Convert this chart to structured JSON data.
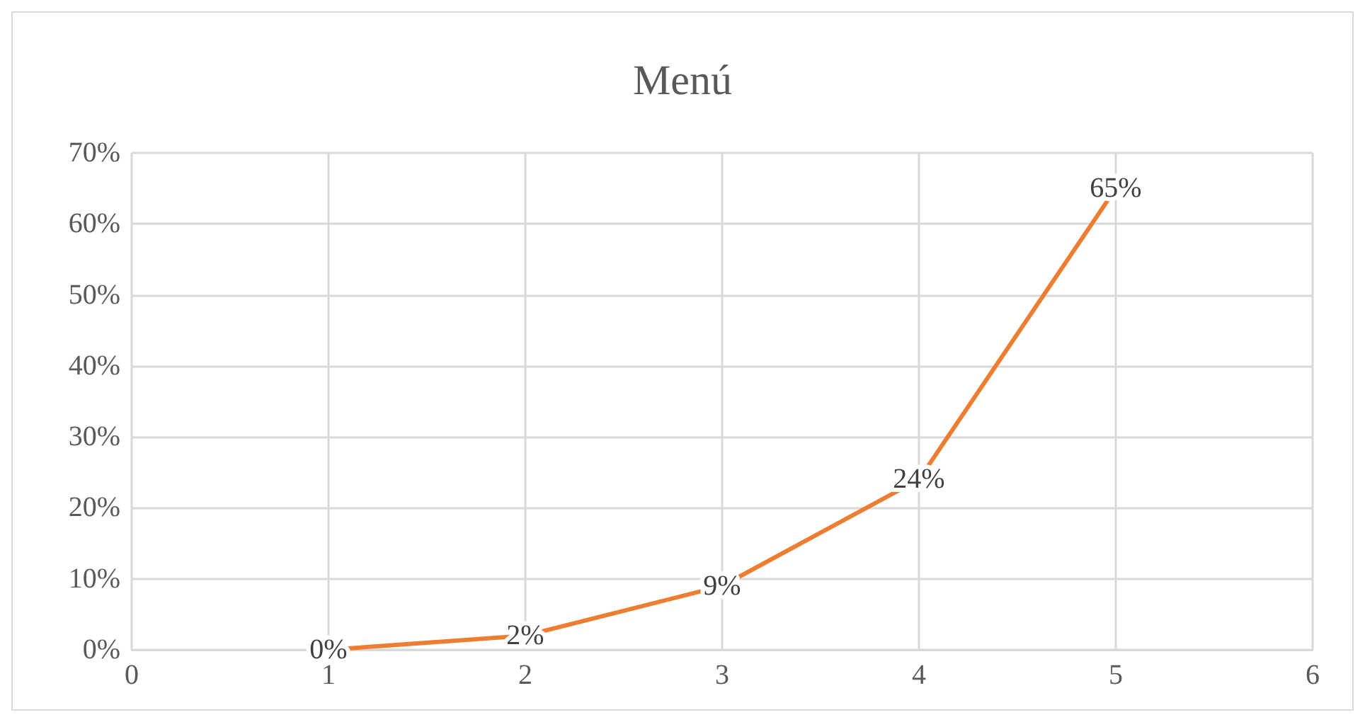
{
  "chart_data": {
    "type": "line",
    "title": "Menú",
    "x": [
      1,
      2,
      3,
      4,
      5
    ],
    "series": [
      {
        "color": "#ed7d31",
        "values": [
          0,
          2,
          9,
          24,
          65
        ],
        "value_labels": [
          "0%",
          "2%",
          "9%",
          "24%",
          "65%"
        ]
      }
    ],
    "xlim": [
      0,
      6
    ],
    "xticks": [
      0,
      1,
      2,
      3,
      4,
      5,
      6
    ],
    "ylim": [
      0,
      70
    ],
    "yticks": [
      {
        "value": 0,
        "label": "0%"
      },
      {
        "value": 10,
        "label": "10%"
      },
      {
        "value": 20,
        "label": "20%"
      },
      {
        "value": 30,
        "label": "30%"
      },
      {
        "value": 40,
        "label": "40%"
      },
      {
        "value": 50,
        "label": "50%"
      },
      {
        "value": 60,
        "label": "60%"
      },
      {
        "value": 70,
        "label": "70%"
      }
    ],
    "grid": true,
    "marker": "none",
    "line_style": "solid"
  }
}
